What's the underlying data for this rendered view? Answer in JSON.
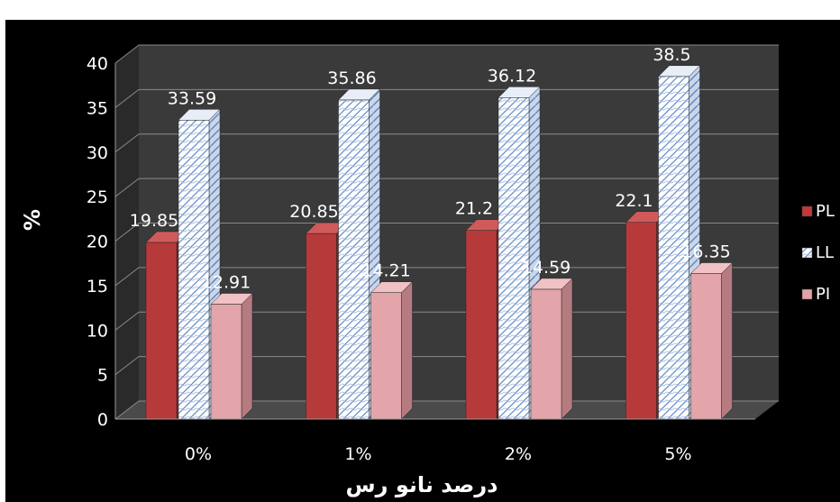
{
  "chart_data": {
    "type": "bar",
    "categories": [
      "0%",
      "1%",
      "2%",
      "5%"
    ],
    "series": [
      {
        "name": "PL",
        "values": [
          19.85,
          20.85,
          21.2,
          22.1
        ],
        "color": "#c0393b"
      },
      {
        "name": "LL",
        "values": [
          33.59,
          35.86,
          36.12,
          38.5
        ],
        "color": "#ffffff"
      },
      {
        "name": "PI",
        "values": [
          12.91,
          14.21,
          14.59,
          16.35
        ],
        "color": "#e3a3a7"
      }
    ],
    "data_labels": [
      [
        "19.85",
        "20.85",
        "21.2",
        "22.1"
      ],
      [
        "33.59",
        "35.86",
        "36.12",
        "38.5"
      ],
      [
        "12.91",
        "14.21",
        "14.59",
        "16.35"
      ]
    ],
    "yticks": [
      "0",
      "5",
      "10",
      "15",
      "20",
      "25",
      "30",
      "35",
      "40"
    ],
    "ylim": [
      0,
      40
    ],
    "xlabel": "درصد نانو رس",
    "ylabel": "%",
    "grid": true,
    "legend_position": "right",
    "style": "3d-column"
  }
}
